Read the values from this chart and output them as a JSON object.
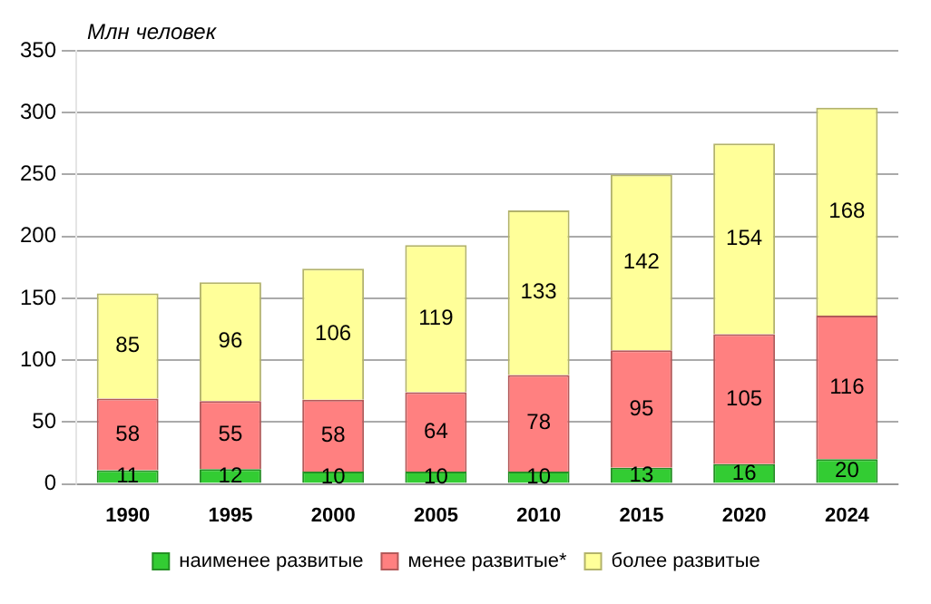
{
  "chart_data": {
    "type": "bar",
    "ylabel": "Млн человек",
    "categories": [
      "1990",
      "1995",
      "2000",
      "2005",
      "2010",
      "2015",
      "2020",
      "2024"
    ],
    "series": [
      {
        "name": "наименее развитые",
        "color": "#33cc33",
        "values": [
          11,
          12,
          10,
          10,
          10,
          13,
          16,
          20
        ]
      },
      {
        "name": "менее развитые*",
        "color": "#ff8080",
        "values": [
          58,
          55,
          58,
          64,
          78,
          95,
          105,
          116
        ]
      },
      {
        "name": "более развитые",
        "color": "#ffff99",
        "values": [
          85,
          96,
          106,
          119,
          133,
          142,
          154,
          168
        ]
      }
    ],
    "stacked": true,
    "data_labels": true,
    "ylim": [
      0,
      350
    ],
    "yticks": [
      0,
      50,
      100,
      150,
      200,
      250,
      300,
      350
    ],
    "grid": "y",
    "legend": "bottom"
  }
}
